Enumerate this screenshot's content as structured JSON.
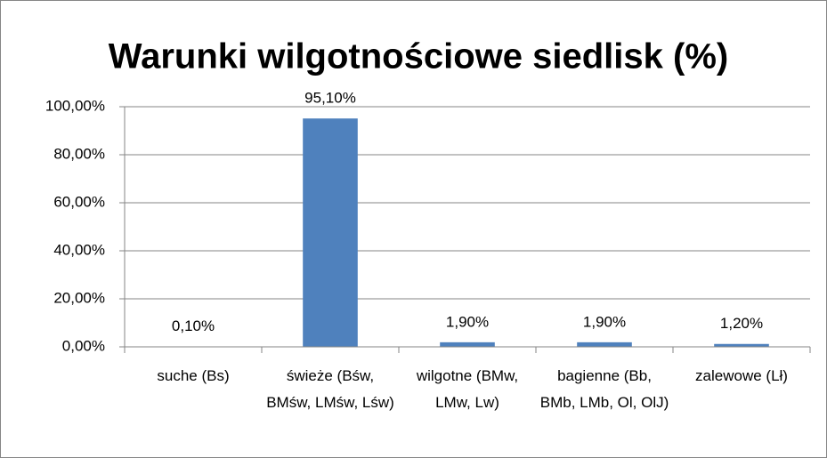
{
  "chart_data": {
    "type": "bar",
    "title": "Warunki wilgotnościowe siedlisk (%)",
    "categories": [
      "suche (Bs)",
      "świeże (Bśw, BMśw, LMśw, Lśw)",
      "wilgotne (BMw, LMw, Lw)",
      "bagienne (Bb, BMb, LMb, Ol, OlJ)",
      "zalewowe (Lł)"
    ],
    "values": [
      0.1,
      95.1,
      1.9,
      1.9,
      1.2
    ],
    "value_labels": [
      "0,10%",
      "95,10%",
      "1,90%",
      "1,90%",
      "1,20%"
    ],
    "color": "#4f81bd",
    "ylim": [
      0,
      100
    ],
    "yticks": [
      {
        "value": 0,
        "label": "0,00%"
      },
      {
        "value": 20,
        "label": "20,00%"
      },
      {
        "value": 40,
        "label": "40,00%"
      },
      {
        "value": 60,
        "label": "60,00%"
      },
      {
        "value": 80,
        "label": "80,00%"
      },
      {
        "value": 100,
        "label": "100,00%"
      }
    ],
    "grid": true
  }
}
